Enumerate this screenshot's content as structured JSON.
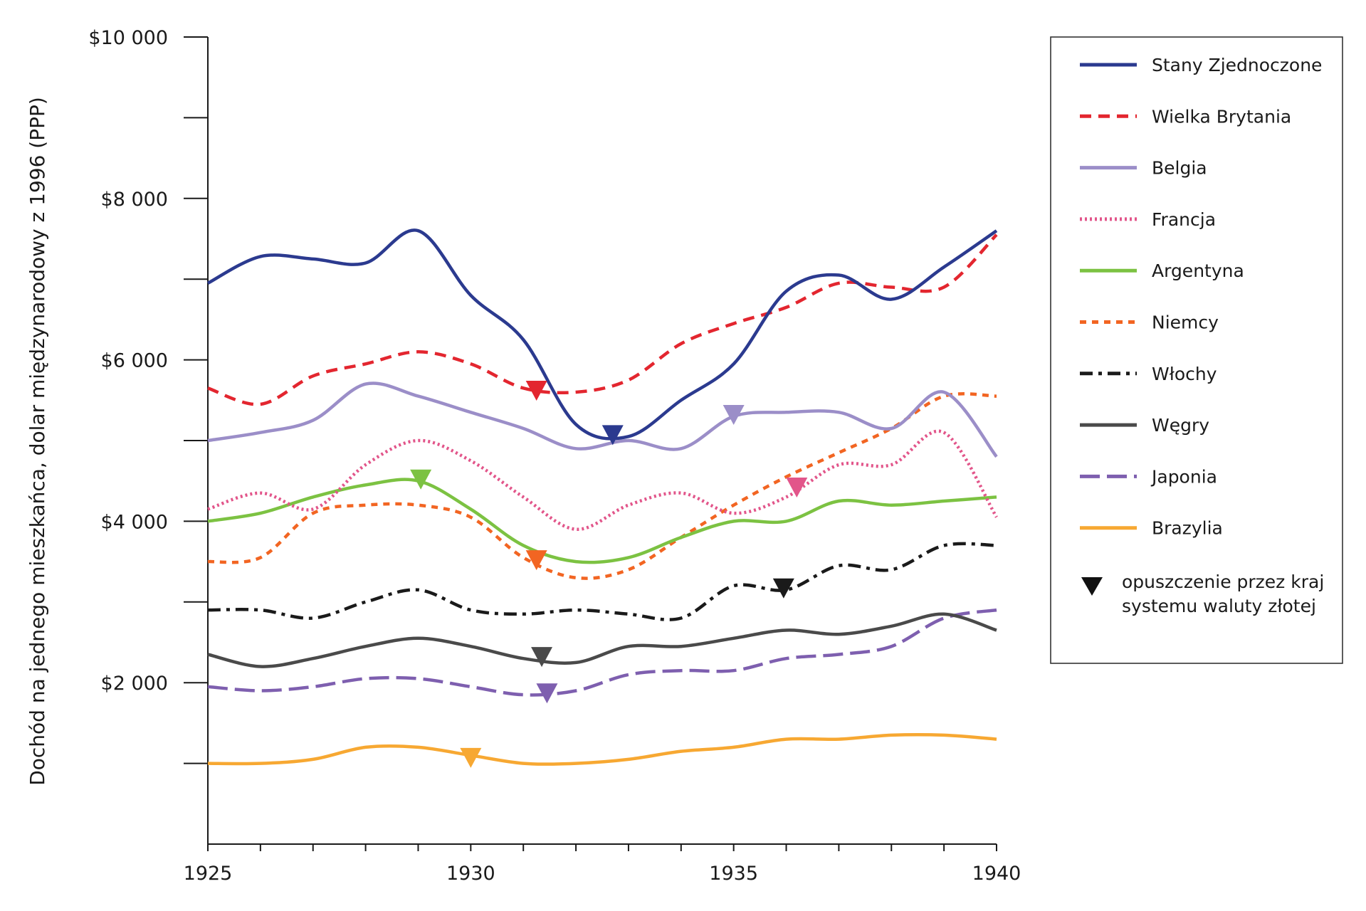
{
  "chart_data": {
    "type": "line",
    "title": "",
    "xlabel": "",
    "ylabel": "Dochód na jednego mieszkańca, dolar międzynarodowy z 1996 (PPP)",
    "xlim": [
      1925,
      1940
    ],
    "ylim": [
      0,
      10000
    ],
    "x_ticks": [
      1925,
      1930,
      1935,
      1940
    ],
    "x_tick_labels": [
      "1925",
      "1930",
      "1935",
      "1940"
    ],
    "y_tick_labels": [
      {
        "value": 2000,
        "label": "$2 000"
      },
      {
        "value": 4000,
        "label": "$4 000"
      },
      {
        "value": 6000,
        "label": "$6 000"
      },
      {
        "value": 8000,
        "label": "$8 000"
      },
      {
        "value": 10000,
        "label": "$10 000"
      }
    ],
    "x": [
      1925,
      1926,
      1927,
      1928,
      1929,
      1930,
      1931,
      1932,
      1933,
      1934,
      1935,
      1936,
      1937,
      1938,
      1939,
      1940
    ],
    "series": [
      {
        "key": "us",
        "name": "Stany Zjednoczone",
        "color": "#2b3a8f",
        "style": "solid",
        "values": [
          6950,
          7280,
          7250,
          7200,
          7600,
          6800,
          6250,
          5200,
          5050,
          5500,
          5950,
          6850,
          7050,
          6750,
          7150,
          7600
        ],
        "marker": {
          "x": 1932.7,
          "y": 5050
        }
      },
      {
        "key": "uk",
        "name": "Wielka Brytania",
        "color": "#e3262f",
        "style": "dash",
        "values": [
          5650,
          5450,
          5800,
          5950,
          6100,
          5950,
          5650,
          5600,
          5750,
          6200,
          6450,
          6650,
          6950,
          6900,
          6900,
          7550
        ],
        "marker": {
          "x": 1931.25,
          "y": 5600
        }
      },
      {
        "key": "be",
        "name": "Belgia",
        "color": "#9b8ec8",
        "style": "solid",
        "values": [
          5000,
          5100,
          5250,
          5700,
          5550,
          5350,
          5150,
          4900,
          5000,
          4900,
          5300,
          5350,
          5350,
          5150,
          5600,
          4800
        ],
        "marker": {
          "x": 1935,
          "y": 5300
        }
      },
      {
        "key": "fr",
        "name": "Francja",
        "color": "#e2558a",
        "style": "dot",
        "values": [
          4150,
          4350,
          4150,
          4700,
          5000,
          4750,
          4300,
          3900,
          4200,
          4350,
          4100,
          4300,
          4700,
          4700,
          5100,
          4050
        ],
        "marker": {
          "x": 1936.2,
          "y": 4400
        }
      },
      {
        "key": "ar",
        "name": "Argentyna",
        "color": "#7cc242",
        "style": "solid",
        "values": [
          4000,
          4100,
          4300,
          4450,
          4500,
          4150,
          3700,
          3500,
          3550,
          3800,
          4000,
          4000,
          4250,
          4200,
          4250,
          4300
        ],
        "marker": {
          "x": 1929.05,
          "y": 4500
        }
      },
      {
        "key": "de",
        "name": "Niemcy",
        "color": "#f26522",
        "style": "short-dash",
        "values": [
          3500,
          3550,
          4100,
          4200,
          4200,
          4050,
          3550,
          3300,
          3400,
          3800,
          4200,
          4550,
          4850,
          5150,
          5550,
          5550
        ],
        "marker": {
          "x": 1931.25,
          "y": 3500
        }
      },
      {
        "key": "it",
        "name": "Włochy",
        "color": "#1a1a1a",
        "style": "dash-dot",
        "values": [
          2900,
          2900,
          2800,
          3000,
          3150,
          2900,
          2850,
          2900,
          2850,
          2800,
          3200,
          3150,
          3450,
          3400,
          3700,
          3700
        ],
        "marker": {
          "x": 1935.95,
          "y": 3150
        }
      },
      {
        "key": "hu",
        "name": "Węgry",
        "color": "#4a4a4a",
        "style": "solid",
        "values": [
          2350,
          2200,
          2300,
          2450,
          2550,
          2450,
          2300,
          2250,
          2450,
          2450,
          2550,
          2650,
          2600,
          2700,
          2850,
          2650
        ],
        "marker": {
          "x": 1931.35,
          "y": 2300
        }
      },
      {
        "key": "jp",
        "name": "Japonia",
        "color": "#7e5faf",
        "style": "long-dash",
        "values": [
          1950,
          1900,
          1950,
          2050,
          2050,
          1950,
          1850,
          1900,
          2100,
          2150,
          2150,
          2300,
          2350,
          2450,
          2800,
          2900
        ],
        "marker": {
          "x": 1931.45,
          "y": 1850
        }
      },
      {
        "key": "br",
        "name": "Brazylia",
        "color": "#f7a832",
        "style": "solid",
        "values": [
          1000,
          1000,
          1050,
          1200,
          1200,
          1100,
          1000,
          1000,
          1050,
          1150,
          1200,
          1300,
          1300,
          1350,
          1350,
          1300
        ],
        "marker": {
          "x": 1930,
          "y": 1050
        }
      }
    ],
    "legend": {
      "position": "top-right",
      "marker_label_line1": "opuszczenie przez kraj",
      "marker_label_line2": "systemu waluty złotej"
    }
  }
}
